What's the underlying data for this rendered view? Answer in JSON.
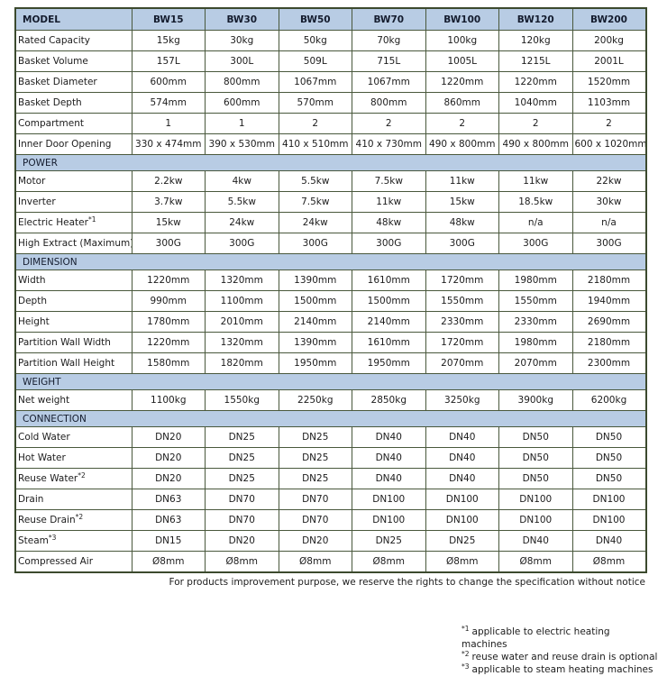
{
  "colors": {
    "header_fill": "#b8cce4",
    "border": "#49583c",
    "outer_border": "#3c4a2e",
    "text": "#1c1c1c"
  },
  "table": {
    "header": {
      "label": "MODEL",
      "models": [
        "BW15",
        "BW30",
        "BW50",
        "BW70",
        "BW100",
        "BW120",
        "BW200"
      ]
    },
    "sections": [
      {
        "title": null,
        "rows": [
          {
            "label": "Rated Capacity",
            "sup": null,
            "values": [
              "15kg",
              "30kg",
              "50kg",
              "70kg",
              "100kg",
              "120kg",
              "200kg"
            ]
          },
          {
            "label": "Basket Volume",
            "sup": null,
            "values": [
              "157L",
              "300L",
              "509L",
              "715L",
              "1005L",
              "1215L",
              "2001L"
            ]
          },
          {
            "label": "Basket Diameter",
            "sup": null,
            "values": [
              "600mm",
              "800mm",
              "1067mm",
              "1067mm",
              "1220mm",
              "1220mm",
              "1520mm"
            ]
          },
          {
            "label": "Basket Depth",
            "sup": null,
            "values": [
              "574mm",
              "600mm",
              "570mm",
              "800mm",
              "860mm",
              "1040mm",
              "1103mm"
            ]
          },
          {
            "label": "Compartment",
            "sup": null,
            "values": [
              "1",
              "1",
              "2",
              "2",
              "2",
              "2",
              "2"
            ]
          },
          {
            "label": "Inner Door Opening",
            "sup": null,
            "values": [
              "330 x 474mm",
              "390 x 530mm",
              "410 x 510mm",
              "410 x 730mm",
              "490 x 800mm",
              "490 x 800mm",
              "600 x 1020mm"
            ]
          }
        ]
      },
      {
        "title": "POWER",
        "rows": [
          {
            "label": "Motor",
            "sup": null,
            "values": [
              "2.2kw",
              "4kw",
              "5.5kw",
              "7.5kw",
              "11kw",
              "11kw",
              "22kw"
            ]
          },
          {
            "label": "Inverter",
            "sup": null,
            "values": [
              "3.7kw",
              "5.5kw",
              "7.5kw",
              "11kw",
              "15kw",
              "18.5kw",
              "30kw"
            ]
          },
          {
            "label": "Electric Heater",
            "sup": "*1",
            "values": [
              "15kw",
              "24kw",
              "24kw",
              "48kw",
              "48kw",
              "n/a",
              "n/a"
            ]
          },
          {
            "label": "High Extract (Maximum)",
            "sup": null,
            "values": [
              "300G",
              "300G",
              "300G",
              "300G",
              "300G",
              "300G",
              "300G"
            ]
          }
        ]
      },
      {
        "title": "DIMENSION",
        "rows": [
          {
            "label": "Width",
            "sup": null,
            "values": [
              "1220mm",
              "1320mm",
              "1390mm",
              "1610mm",
              "1720mm",
              "1980mm",
              "2180mm"
            ]
          },
          {
            "label": "Depth",
            "sup": null,
            "values": [
              "990mm",
              "1100mm",
              "1500mm",
              "1500mm",
              "1550mm",
              "1550mm",
              "1940mm"
            ]
          },
          {
            "label": "Height",
            "sup": null,
            "values": [
              "1780mm",
              "2010mm",
              "2140mm",
              "2140mm",
              "2330mm",
              "2330mm",
              "2690mm"
            ]
          },
          {
            "label": "Partition Wall Width",
            "sup": null,
            "values": [
              "1220mm",
              "1320mm",
              "1390mm",
              "1610mm",
              "1720mm",
              "1980mm",
              "2180mm"
            ]
          },
          {
            "label": "Partition Wall Height",
            "sup": null,
            "values": [
              "1580mm",
              "1820mm",
              "1950mm",
              "1950mm",
              "2070mm",
              "2070mm",
              "2300mm"
            ]
          }
        ]
      },
      {
        "title": "WEIGHT",
        "rows": [
          {
            "label": "Net weight",
            "sup": null,
            "values": [
              "1100kg",
              "1550kg",
              "2250kg",
              "2850kg",
              "3250kg",
              "3900kg",
              "6200kg"
            ]
          }
        ]
      },
      {
        "title": "CONNECTION",
        "rows": [
          {
            "label": "Cold Water",
            "sup": null,
            "values": [
              "DN20",
              "DN25",
              "DN25",
              "DN40",
              "DN40",
              "DN50",
              "DN50"
            ]
          },
          {
            "label": "Hot Water",
            "sup": null,
            "values": [
              "DN20",
              "DN25",
              "DN25",
              "DN40",
              "DN40",
              "DN50",
              "DN50"
            ]
          },
          {
            "label": "Reuse Water",
            "sup": "*2",
            "values": [
              "DN20",
              "DN25",
              "DN25",
              "DN40",
              "DN40",
              "DN50",
              "DN50"
            ]
          },
          {
            "label": "Drain",
            "sup": null,
            "values": [
              "DN63",
              "DN70",
              "DN70",
              "DN100",
              "DN100",
              "DN100",
              "DN100"
            ]
          },
          {
            "label": "Reuse Drain",
            "sup": "*2",
            "values": [
              "DN63",
              "DN70",
              "DN70",
              "DN100",
              "DN100",
              "DN100",
              "DN100"
            ]
          },
          {
            "label": "Steam",
            "sup": "*3",
            "values": [
              "DN15",
              "DN20",
              "DN20",
              "DN25",
              "DN25",
              "DN40",
              "DN40"
            ]
          },
          {
            "label": "Compressed Air",
            "sup": null,
            "values": [
              "Ø8mm",
              "Ø8mm",
              "Ø8mm",
              "Ø8mm",
              "Ø8mm",
              "Ø8mm",
              "Ø8mm"
            ]
          }
        ]
      }
    ]
  },
  "disclaimer": "For products improvement purpose, we reserve the rights to change the specification without notice",
  "footnotes": [
    {
      "sup": "*1",
      "text": "applicable to electric heating machines"
    },
    {
      "sup": "*2",
      "text": "reuse water and reuse drain is optional"
    },
    {
      "sup": "*3",
      "text": "applicable to steam heating machines"
    }
  ]
}
